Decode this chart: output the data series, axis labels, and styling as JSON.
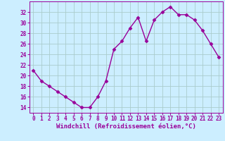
{
  "x": [
    0,
    1,
    2,
    3,
    4,
    5,
    6,
    7,
    8,
    9,
    10,
    11,
    12,
    13,
    14,
    15,
    16,
    17,
    18,
    19,
    20,
    21,
    22,
    23
  ],
  "y": [
    21,
    19,
    18,
    17,
    16,
    15,
    14,
    14,
    16,
    19,
    25,
    26.5,
    29,
    31,
    26.5,
    30.5,
    32,
    33,
    31.5,
    31.5,
    30.5,
    28.5,
    26,
    23.5
  ],
  "line_color": "#990099",
  "marker": "D",
  "marker_size": 2.5,
  "bg_color": "#cceeff",
  "grid_color": "#aacccc",
  "xlabel": "Windchill (Refroidissement éolien,°C)",
  "xlabel_color": "#990099",
  "ylim": [
    13,
    34
  ],
  "yticks": [
    14,
    16,
    18,
    20,
    22,
    24,
    26,
    28,
    30,
    32
  ],
  "xticks": [
    0,
    1,
    2,
    3,
    4,
    5,
    6,
    7,
    8,
    9,
    10,
    11,
    12,
    13,
    14,
    15,
    16,
    17,
    18,
    19,
    20,
    21,
    22,
    23
  ],
  "tick_color": "#990099",
  "tick_label_fontsize": 5.5,
  "xlabel_fontsize": 6.5,
  "line_width": 1.0
}
